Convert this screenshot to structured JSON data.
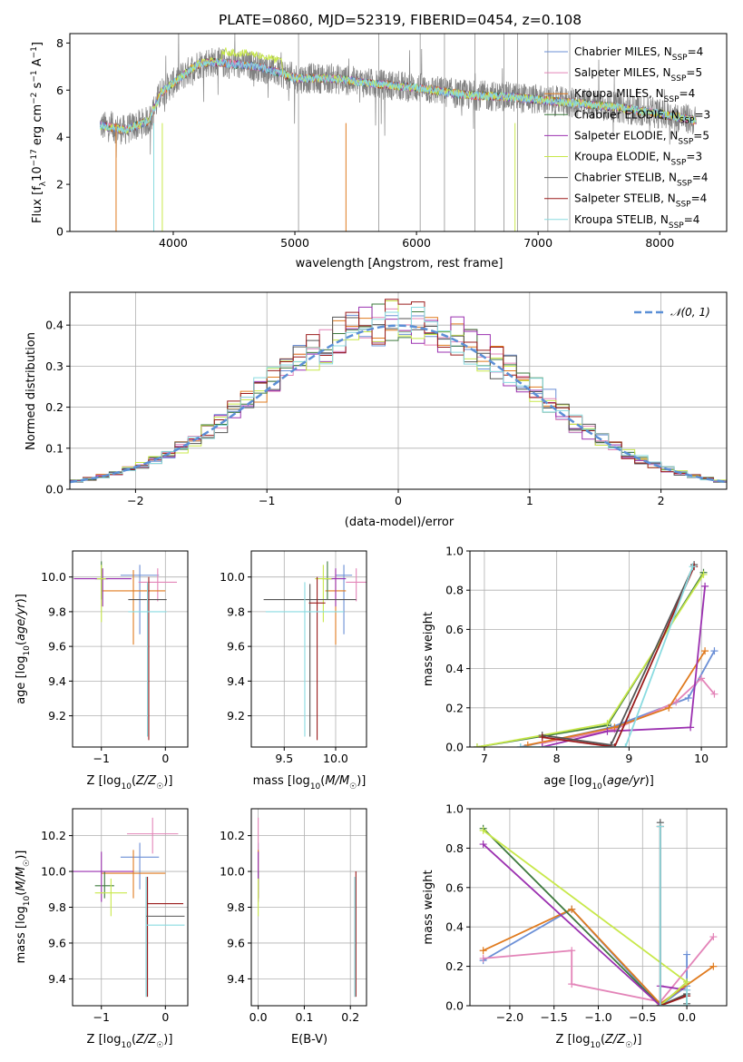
{
  "title": "PLATE=0860, MJD=52319, FIBERID=0454, z=0.108",
  "colors": {
    "chabrier_miles": "#6b8fd6",
    "salpeter_miles": "#e384b8",
    "kroupa_miles": "#e07b1f",
    "chabrier_elodie": "#3d7a3d",
    "salpeter_elodie": "#9b30b0",
    "kroupa_elodie": "#c8e84a",
    "chabrier_stelib": "#555555",
    "salpeter_stelib": "#9b1c1c",
    "kroupa_stelib": "#8adbe0",
    "data": "#808080",
    "normal_curve": "#5b8fd6"
  },
  "chart_data": [
    {
      "type": "line",
      "panel": "spectrum",
      "xlabel": "wavelength [Angstrom, rest frame]",
      "ylabel": "Flux [f_λ10^-17 erg cm^-2 s^-1 A^-1]",
      "xlim": [
        3150,
        8550
      ],
      "ylim": [
        0,
        8.4
      ],
      "xticks": [
        4000,
        5000,
        6000,
        7000,
        8000
      ],
      "yticks": [
        0,
        2,
        4,
        6,
        8
      ],
      "legend_position": "top-right",
      "series": [
        {
          "name": "Chabrier MILES, N_SSP=4",
          "key": "chabrier_miles"
        },
        {
          "name": "Salpeter MILES, N_SSP=5",
          "key": "salpeter_miles"
        },
        {
          "name": "Kroupa MILES, N_SSP=4",
          "key": "kroupa_miles"
        },
        {
          "name": "Chabrier ELODIE, N_SSP=3",
          "key": "chabrier_elodie"
        },
        {
          "name": "Salpeter ELODIE, N_SSP=5",
          "key": "salpeter_elodie"
        },
        {
          "name": "Kroupa ELODIE, N_SSP=3",
          "key": "kroupa_elodie"
        },
        {
          "name": "Chabrier STELIB, N_SSP=4",
          "key": "chabrier_stelib"
        },
        {
          "name": "Salpeter STELIB, N_SSP=4",
          "key": "salpeter_stelib"
        },
        {
          "name": "Kroupa STELIB, N_SSP=4",
          "key": "kroupa_stelib"
        }
      ],
      "continuum": {
        "x": [
          3400,
          3600,
          3800,
          3900,
          4000,
          4100,
          4200,
          4300,
          4500,
          4700,
          4900,
          5000,
          5300,
          5600,
          6000,
          6400,
          6800,
          7200,
          7600,
          8000,
          8300
        ],
        "y": [
          4.5,
          4.3,
          4.7,
          5.9,
          6.3,
          6.7,
          7.1,
          7.2,
          7.1,
          7.0,
          6.7,
          6.5,
          6.5,
          6.3,
          6.1,
          5.8,
          5.7,
          5.5,
          5.3,
          5.0,
          4.7
        ]
      }
    },
    {
      "type": "line",
      "panel": "residual_histogram",
      "xlabel": "(data-model)/error",
      "ylabel": "Normed distribution",
      "xlim": [
        -2.5,
        2.5
      ],
      "ylim": [
        0,
        0.48
      ],
      "xticks": [
        -2,
        -1,
        0,
        1,
        2
      ],
      "yticks": [
        0.0,
        0.1,
        0.2,
        0.3,
        0.4
      ],
      "legend": "𝒩(0, 1)",
      "legend_position": "top-right",
      "bins": 50,
      "bin_range": [
        -2.5,
        2.5
      ]
    },
    {
      "type": "scatter",
      "panel": "age_vs_Z",
      "xlabel": "Z [log10(Z/Z☉)]",
      "ylabel": "age [log10(age/yr)]",
      "xlim": [
        -1.45,
        0.35
      ],
      "ylim": [
        9.02,
        10.15
      ],
      "xticks": [
        -1,
        0
      ],
      "yticks": [
        9.2,
        9.4,
        9.6,
        9.8,
        10.0
      ],
      "points": [
        {
          "key": "chabrier_miles",
          "x": -0.4,
          "xerr": 0.3,
          "y": 10.01,
          "yl": 9.67,
          "yh": 10.07
        },
        {
          "key": "salpeter_miles",
          "x": -0.12,
          "xerr": 0.3,
          "y": 9.97,
          "yl": 9.86,
          "yh": 10.05
        },
        {
          "key": "kroupa_miles",
          "x": -0.5,
          "xerr": 0.5,
          "y": 9.92,
          "yl": 9.61,
          "yh": 10.04
        },
        {
          "key": "chabrier_elodie",
          "x": -1.0,
          "xerr": 0.1,
          "y": 9.99,
          "yl": 9.87,
          "yh": 10.09
        },
        {
          "key": "salpeter_elodie",
          "x": -0.98,
          "xerr": 0.45,
          "y": 9.99,
          "yl": 9.83,
          "yh": 10.05
        },
        {
          "key": "kroupa_elodie",
          "x": -1.0,
          "xerr": 0.07,
          "y": 9.99,
          "yl": 9.74,
          "yh": 10.07
        },
        {
          "key": "chabrier_stelib",
          "x": -0.28,
          "xerr": 0.3,
          "y": 9.87,
          "yl": 9.08,
          "yh": 9.96
        },
        {
          "key": "salpeter_stelib",
          "x": -0.26,
          "xerr": 0.0,
          "y": 9.85,
          "yl": 9.06,
          "yh": 10.0
        },
        {
          "key": "kroupa_stelib",
          "x": -0.28,
          "xerr": 0.3,
          "y": 9.8,
          "yl": 9.08,
          "yh": 9.97
        }
      ]
    },
    {
      "type": "scatter",
      "panel": "age_vs_mass",
      "xlabel": "mass [log10(M/M☉)]",
      "ylabel": "",
      "xlim": [
        9.18,
        10.3
      ],
      "ylim": [
        9.02,
        10.15
      ],
      "xticks": [
        9.5,
        10.0
      ],
      "yticks": [
        9.2,
        9.4,
        9.6,
        9.8,
        10.0
      ],
      "points": [
        {
          "key": "chabrier_miles",
          "x": 10.08,
          "xerr": 0.08,
          "y": 10.01,
          "yl": 9.67,
          "yh": 10.07
        },
        {
          "key": "salpeter_miles",
          "x": 10.2,
          "xerr": 0.1,
          "y": 9.97,
          "yl": 9.86,
          "yh": 10.05
        },
        {
          "key": "kroupa_miles",
          "x": 10.0,
          "xerr": 0.1,
          "y": 9.92,
          "yl": 9.61,
          "yh": 10.04
        },
        {
          "key": "chabrier_elodie",
          "x": 9.92,
          "xerr": 0.05,
          "y": 9.99,
          "yl": 9.87,
          "yh": 10.09
        },
        {
          "key": "salpeter_elodie",
          "x": 10.0,
          "xerr": 0.1,
          "y": 9.99,
          "yl": 9.83,
          "yh": 10.05
        },
        {
          "key": "kroupa_elodie",
          "x": 9.88,
          "xerr": 0.08,
          "y": 9.99,
          "yl": 9.74,
          "yh": 10.07
        },
        {
          "key": "chabrier_stelib",
          "x": 9.75,
          "xerr": 0.45,
          "y": 9.87,
          "yl": 9.08,
          "yh": 9.96
        },
        {
          "key": "salpeter_stelib",
          "x": 9.82,
          "xerr": 0.08,
          "y": 9.85,
          "yl": 9.06,
          "yh": 10.0
        },
        {
          "key": "kroupa_stelib",
          "x": 9.7,
          "xerr": 0.38,
          "y": 9.8,
          "yl": 9.08,
          "yh": 9.97
        }
      ]
    },
    {
      "type": "line",
      "panel": "mass_weight_vs_age",
      "xlabel": "age [log10(age/yr)]",
      "ylabel": "mass weight",
      "xlim": [
        6.8,
        10.35
      ],
      "ylim": [
        0,
        1.0
      ],
      "xticks": [
        7,
        8,
        9,
        10
      ],
      "yticks": [
        0.0,
        0.2,
        0.4,
        0.6,
        0.8,
        1.0
      ],
      "series": [
        {
          "key": "chabrier_miles",
          "x": [
            7.5,
            8.75,
            9.82,
            10.18
          ],
          "y": [
            0.0,
            0.1,
            0.25,
            0.49
          ]
        },
        {
          "key": "salpeter_miles",
          "x": [
            7.8,
            8.8,
            9.65,
            10.0,
            10.18
          ],
          "y": [
            0.02,
            0.09,
            0.23,
            0.35,
            0.27
          ]
        },
        {
          "key": "kroupa_miles",
          "x": [
            7.6,
            8.8,
            9.55,
            10.05
          ],
          "y": [
            0.01,
            0.1,
            0.2,
            0.49
          ]
        },
        {
          "key": "chabrier_elodie",
          "x": [
            6.9,
            8.7,
            10.03
          ],
          "y": [
            0.0,
            0.11,
            0.89
          ]
        },
        {
          "key": "salpeter_elodie",
          "x": [
            7.8,
            8.7,
            9.85,
            10.05
          ],
          "y": [
            0.0,
            0.08,
            0.1,
            0.82
          ]
        },
        {
          "key": "kroupa_elodie",
          "x": [
            6.9,
            8.7,
            10.03
          ],
          "y": [
            0.0,
            0.12,
            0.88
          ]
        },
        {
          "key": "chabrier_stelib",
          "x": [
            7.8,
            8.75,
            9.9
          ],
          "y": [
            0.06,
            0.01,
            0.93
          ]
        },
        {
          "key": "salpeter_stelib",
          "x": [
            7.8,
            8.8,
            9.9
          ],
          "y": [
            0.05,
            0.0,
            0.92
          ]
        },
        {
          "key": "kroupa_stelib",
          "x": [
            7.5,
            8.95,
            9.88
          ],
          "y": [
            0.0,
            0.0,
            0.92
          ]
        }
      ]
    },
    {
      "type": "scatter",
      "panel": "mass_vs_Z",
      "xlabel": "Z [log10(Z/Z☉)]",
      "ylabel": "mass [log10(M/M☉)]",
      "xlim": [
        -1.45,
        0.35
      ],
      "ylim": [
        9.25,
        10.35
      ],
      "xticks": [
        -1,
        0
      ],
      "yticks": [
        9.4,
        9.6,
        9.8,
        10.0,
        10.2
      ],
      "points": [
        {
          "key": "chabrier_miles",
          "x": -0.4,
          "xerr": 0.3,
          "y": 10.08,
          "yl": 9.9,
          "yh": 10.16
        },
        {
          "key": "salpeter_miles",
          "x": -0.2,
          "xerr": 0.4,
          "y": 10.21,
          "yl": 10.1,
          "yh": 10.3
        },
        {
          "key": "kroupa_miles",
          "x": -0.5,
          "xerr": 0.5,
          "y": 9.99,
          "yl": 9.85,
          "yh": 10.12
        },
        {
          "key": "chabrier_elodie",
          "x": -0.95,
          "xerr": 0.15,
          "y": 9.92,
          "yl": 9.85,
          "yh": 10.0
        },
        {
          "key": "salpeter_elodie",
          "x": -1.0,
          "xerr": 0.5,
          "y": 10.0,
          "yl": 9.83,
          "yh": 10.11
        },
        {
          "key": "kroupa_elodie",
          "x": -0.85,
          "xerr": 0.25,
          "y": 9.88,
          "yl": 9.75,
          "yh": 9.96
        },
        {
          "key": "chabrier_stelib",
          "x": -0.3,
          "xerr": 0.0,
          "y": 9.75,
          "yl": 9.3,
          "yh": 9.97
        },
        {
          "key": "salpeter_stelib",
          "x": -0.28,
          "xerr": 0.0,
          "y": 9.82,
          "yl": 9.3,
          "yh": 9.97
        },
        {
          "key": "kroupa_stelib",
          "x": -0.3,
          "xerr": 0.0,
          "y": 9.7,
          "yl": 9.3,
          "yh": 9.97
        },
        {
          "key": "chabrier_stelib",
          "x": 0.0,
          "xerr": 0.3,
          "y": 9.75,
          "yl": 9.75,
          "yh": 9.75
        },
        {
          "key": "salpeter_stelib",
          "x": 0.0,
          "xerr": 0.28,
          "y": 9.82,
          "yl": 9.82,
          "yh": 9.82
        },
        {
          "key": "kroupa_stelib",
          "x": 0.0,
          "xerr": 0.3,
          "y": 9.7,
          "yl": 9.7,
          "yh": 9.7
        }
      ]
    },
    {
      "type": "scatter",
      "panel": "mass_vs_ebv",
      "xlabel": "E(B-V)",
      "ylabel": "",
      "xlim": [
        -0.015,
        0.235
      ],
      "ylim": [
        9.25,
        10.35
      ],
      "xticks": [
        0.0,
        0.1,
        0.2
      ],
      "yticks": [
        9.4,
        9.6,
        9.8,
        10.0,
        10.2
      ],
      "points": [
        {
          "key": "chabrier_miles",
          "x": 0.0,
          "y": 10.08,
          "yl": 9.9,
          "yh": 10.16
        },
        {
          "key": "salpeter_miles",
          "x": 0.0,
          "y": 10.21,
          "yl": 10.1,
          "yh": 10.3
        },
        {
          "key": "kroupa_miles",
          "x": 0.0,
          "y": 9.99,
          "yl": 9.85,
          "yh": 10.12
        },
        {
          "key": "chabrier_elodie",
          "x": 0.0,
          "y": 9.92,
          "yl": 9.85,
          "yh": 10.0
        },
        {
          "key": "salpeter_elodie",
          "x": 0.0,
          "y": 10.0,
          "yl": 9.83,
          "yh": 10.11
        },
        {
          "key": "kroupa_elodie",
          "x": 0.0,
          "y": 9.88,
          "yl": 9.75,
          "yh": 9.96
        },
        {
          "key": "chabrier_stelib",
          "x": 0.21,
          "y": 9.75,
          "yl": 9.3,
          "yh": 9.97
        },
        {
          "key": "salpeter_stelib",
          "x": 0.212,
          "y": 9.82,
          "yl": 9.3,
          "yh": 10.0
        },
        {
          "key": "kroupa_stelib",
          "x": 0.21,
          "y": 9.7,
          "yl": 9.3,
          "yh": 9.97
        }
      ]
    },
    {
      "type": "line",
      "panel": "mass_weight_vs_Z",
      "xlabel": "Z [log10(Z/Z☉)]",
      "ylabel": "mass weight",
      "xlim": [
        -2.45,
        0.45
      ],
      "ylim": [
        0,
        1.0
      ],
      "xticks": [
        -2.0,
        -1.5,
        -1.0,
        -0.5,
        0.0
      ],
      "yticks": [
        0.0,
        0.2,
        0.4,
        0.6,
        0.8,
        1.0
      ],
      "series": [
        {
          "key": "chabrier_miles",
          "x": [
            -2.3,
            -1.3,
            -0.3,
            0.0,
            0.0
          ],
          "y": [
            0.23,
            0.49,
            0.0,
            0.1,
            0.26
          ]
        },
        {
          "key": "salpeter_miles",
          "x": [
            -2.3,
            -1.3,
            -1.3,
            -0.3,
            0.3
          ],
          "y": [
            0.24,
            0.28,
            0.11,
            0.02,
            0.35
          ]
        },
        {
          "key": "kroupa_miles",
          "x": [
            -2.3,
            -1.3,
            -0.3,
            0.3
          ],
          "y": [
            0.28,
            0.49,
            0.01,
            0.2
          ]
        },
        {
          "key": "chabrier_elodie",
          "x": [
            -2.3,
            -0.3,
            0.0
          ],
          "y": [
            0.9,
            0.0,
            0.12
          ]
        },
        {
          "key": "salpeter_elodie",
          "x": [
            -2.3,
            -0.3,
            -0.3,
            0.0
          ],
          "y": [
            0.82,
            0.0,
            0.1,
            0.08
          ]
        },
        {
          "key": "kroupa_elodie",
          "x": [
            -2.3,
            0.0,
            -0.3
          ],
          "y": [
            0.89,
            0.12,
            0.0
          ]
        },
        {
          "key": "chabrier_stelib",
          "x": [
            -0.3,
            -0.3,
            0.0,
            0.0
          ],
          "y": [
            0.93,
            0.0,
            0.06,
            0.01
          ]
        },
        {
          "key": "salpeter_stelib",
          "x": [
            -0.3,
            -0.3,
            0.0
          ],
          "y": [
            0.91,
            0.0,
            0.05
          ]
        },
        {
          "key": "kroupa_stelib",
          "x": [
            -0.3,
            -0.3,
            0.0,
            0.0
          ],
          "y": [
            0.91,
            0.0,
            0.0,
            0.08
          ]
        }
      ]
    }
  ]
}
